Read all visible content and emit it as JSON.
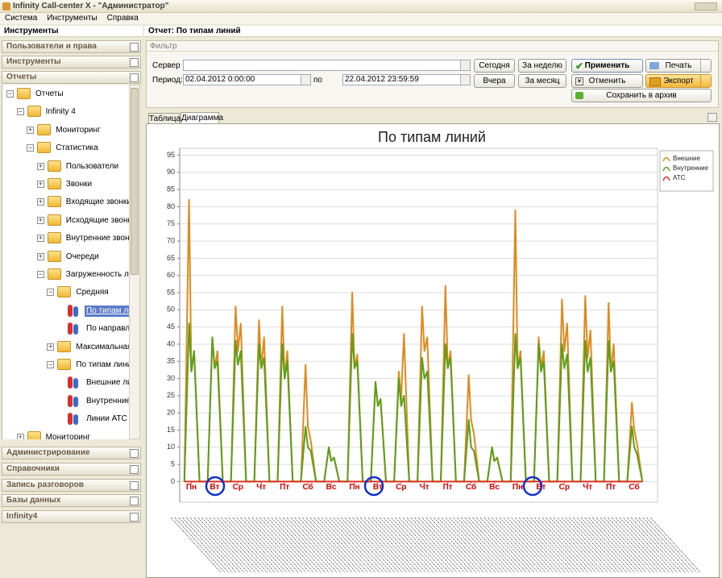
{
  "window": {
    "title": "Infinity Call-center X - \"Администратор\""
  },
  "menu": [
    "Система",
    "Инструменты",
    "Справка"
  ],
  "sidebar": {
    "title": "Инструменты",
    "sections_top": [
      "Пользователи и права",
      "Инструменты",
      "Отчеты"
    ],
    "tree": {
      "label": "Отчеты",
      "children": [
        {
          "label": "Infinity 4",
          "children": [
            {
              "label": "Мониторинг"
            },
            {
              "label": "Статистика",
              "children": [
                {
                  "label": "Пользователи"
                },
                {
                  "label": "Звонки"
                },
                {
                  "label": "Входящие звонки"
                },
                {
                  "label": "Исходящие звонки"
                },
                {
                  "label": "Внутренние звонки"
                },
                {
                  "label": "Очереди"
                },
                {
                  "label": "Загруженность линий",
                  "children": [
                    {
                      "label": "Средняя",
                      "children": [
                        {
                          "label": "По типам линий"
                        },
                        {
                          "label": "По направлен..."
                        }
                      ]
                    },
                    {
                      "label": "Максимальная"
                    },
                    {
                      "label": "По типам линий",
                      "children": [
                        {
                          "label": "Внешние линии"
                        },
                        {
                          "label": "Внутренние л..."
                        },
                        {
                          "label": "Линии АТС"
                        }
                      ]
                    }
                  ]
                }
              ]
            }
          ]
        },
        {
          "label": "Мониторинг"
        }
      ]
    },
    "sections_bottom": [
      "Администрирование",
      "Справочники",
      "Запись разговоров",
      "Базы данных",
      "Infinity4"
    ]
  },
  "report": {
    "title": "Отчет: По типам линий",
    "filter": {
      "title": "Фильтр",
      "server_label": "Сервер",
      "period_label": "Период: с",
      "to_label": "по",
      "date_from": "02.04.2012 0:00:00",
      "date_to": "22.04.2012 23:59:59",
      "buttons": {
        "today": "Сегодня",
        "week": "За неделю",
        "yesterday": "Вчера",
        "month": "За месяц",
        "apply": "Применить",
        "cancel": "Отменить",
        "archive": "Сохранить в архив",
        "print": "Печать",
        "export": "Экспорт"
      }
    },
    "tabs": [
      "Таблица",
      "Диаграмма"
    ]
  },
  "chart_data": {
    "type": "line",
    "title": "По типам линий",
    "x": [
      0.2,
      0.4,
      0.5,
      0.62,
      0.85,
      1.2,
      1.4,
      1.5,
      1.62,
      1.85,
      2.2,
      2.4,
      2.5,
      2.62,
      2.85,
      3.2,
      3.4,
      3.5,
      3.62,
      3.85,
      4.2,
      4.4,
      4.5,
      4.62,
      4.85,
      5.2,
      5.4,
      5.5,
      5.62,
      5.85,
      6.2,
      6.4,
      6.5,
      6.62,
      6.85,
      7.2,
      7.4,
      7.5,
      7.62,
      7.85,
      8.2,
      8.4,
      8.5,
      8.62,
      8.85,
      9.2,
      9.4,
      9.5,
      9.62,
      9.85,
      10.2,
      10.4,
      10.5,
      10.62,
      10.85,
      11.2,
      11.4,
      11.5,
      11.62,
      11.85,
      12.2,
      12.4,
      12.5,
      12.62,
      12.85,
      13.2,
      13.4,
      13.5,
      13.62,
      13.85,
      14.2,
      14.4,
      14.5,
      14.62,
      14.85,
      15.2,
      15.4,
      15.5,
      15.62,
      15.85,
      16.2,
      16.4,
      16.5,
      16.62,
      16.85,
      17.2,
      17.4,
      17.5,
      17.62,
      17.85,
      18.2,
      18.4,
      18.5,
      18.62,
      18.85,
      19.2,
      19.4,
      19.5,
      19.62,
      19.85
    ],
    "xlim": [
      0,
      20.5
    ],
    "xticks": [
      {
        "value": 0.5,
        "label": "Пн"
      },
      {
        "value": 1.5,
        "label": "Вт"
      },
      {
        "value": 2.5,
        "label": "Ср"
      },
      {
        "value": 3.5,
        "label": "Чт"
      },
      {
        "value": 4.5,
        "label": "Пт"
      },
      {
        "value": 5.5,
        "label": "Сб"
      },
      {
        "value": 6.5,
        "label": "Вс"
      },
      {
        "value": 7.5,
        "label": "Пн"
      },
      {
        "value": 8.5,
        "label": "Вт"
      },
      {
        "value": 9.5,
        "label": "Ср"
      },
      {
        "value": 10.5,
        "label": "Чт"
      },
      {
        "value": 11.5,
        "label": "Пт"
      },
      {
        "value": 12.5,
        "label": "Сб"
      },
      {
        "value": 13.5,
        "label": "Вс"
      },
      {
        "value": 14.5,
        "label": "Пн"
      },
      {
        "value": 15.5,
        "label": "Вт"
      },
      {
        "value": 16.5,
        "label": "Ср"
      },
      {
        "value": 17.5,
        "label": "Чт"
      },
      {
        "value": 18.5,
        "label": "Пт"
      },
      {
        "value": 19.5,
        "label": "Сб"
      }
    ],
    "xtick_color": "#e00000",
    "ylim": [
      -6,
      97
    ],
    "yticks": [
      0,
      5,
      10,
      15,
      20,
      25,
      30,
      35,
      40,
      45,
      50,
      55,
      60,
      65,
      70,
      75,
      80,
      85,
      90,
      95
    ],
    "grid": true,
    "legend": "upper right",
    "series": [
      {
        "name": "Внешние",
        "color": "#e08a1e",
        "values": [
          0,
          82,
          32,
          38,
          0,
          0,
          42,
          33,
          38,
          0,
          0,
          51,
          38,
          46,
          0,
          0,
          47,
          33,
          42,
          0,
          0,
          51,
          30,
          38,
          0,
          0,
          34,
          16,
          12,
          0,
          0,
          10,
          6,
          7,
          0,
          0,
          55,
          33,
          37,
          0,
          0,
          29,
          22,
          24,
          0,
          0,
          32,
          24,
          43,
          0,
          0,
          51,
          38,
          42,
          0,
          0,
          57,
          33,
          38,
          0,
          0,
          31,
          18,
          14,
          0,
          0,
          10,
          6,
          7,
          0,
          0,
          79,
          33,
          38,
          0,
          0,
          42,
          33,
          38,
          0,
          0,
          53,
          38,
          46,
          0,
          0,
          54,
          36,
          44,
          0,
          0,
          52,
          32,
          40,
          0,
          0,
          23,
          15,
          11,
          0
        ]
      },
      {
        "name": "Внутренние",
        "color": "#5a9e1a",
        "values": [
          0,
          46,
          32,
          38,
          0,
          0,
          42,
          33,
          35,
          0,
          0,
          41,
          34,
          38,
          0,
          0,
          40,
          33,
          36,
          0,
          0,
          40,
          30,
          35,
          0,
          0,
          16,
          10,
          9,
          0,
          0,
          10,
          6,
          7,
          0,
          0,
          43,
          33,
          35,
          0,
          0,
          29,
          22,
          24,
          0,
          0,
          30,
          22,
          25,
          0,
          0,
          36,
          30,
          32,
          0,
          0,
          40,
          33,
          36,
          0,
          0,
          18,
          10,
          9,
          0,
          0,
          10,
          6,
          7,
          0,
          0,
          43,
          33,
          36,
          0,
          0,
          40,
          32,
          35,
          0,
          0,
          40,
          33,
          37,
          0,
          0,
          41,
          32,
          36,
          0,
          0,
          41,
          32,
          35,
          0,
          0,
          16,
          10,
          8,
          0
        ]
      },
      {
        "name": "АТС",
        "color": "#e03020",
        "values": [
          0,
          0,
          0,
          0,
          0,
          0,
          0,
          0,
          0,
          0,
          0,
          0,
          0,
          0,
          0,
          0,
          0,
          0,
          0,
          0,
          0,
          0,
          0,
          0,
          0,
          0,
          0,
          0,
          0,
          0,
          0,
          0,
          0,
          0,
          0,
          0,
          0,
          0,
          0,
          0,
          0,
          0,
          0,
          0,
          0,
          0,
          0,
          0,
          0,
          0,
          0,
          0,
          0,
          0,
          0,
          0,
          0,
          0,
          0,
          0,
          0,
          0,
          0,
          0,
          0,
          0,
          0,
          0,
          0,
          0,
          0,
          0,
          0,
          0,
          0,
          0,
          0,
          0,
          0,
          0,
          0,
          0,
          0,
          0,
          0,
          0,
          0,
          0,
          0,
          0,
          0,
          0,
          0,
          0,
          0,
          0,
          0,
          0,
          0,
          0
        ]
      }
    ]
  }
}
